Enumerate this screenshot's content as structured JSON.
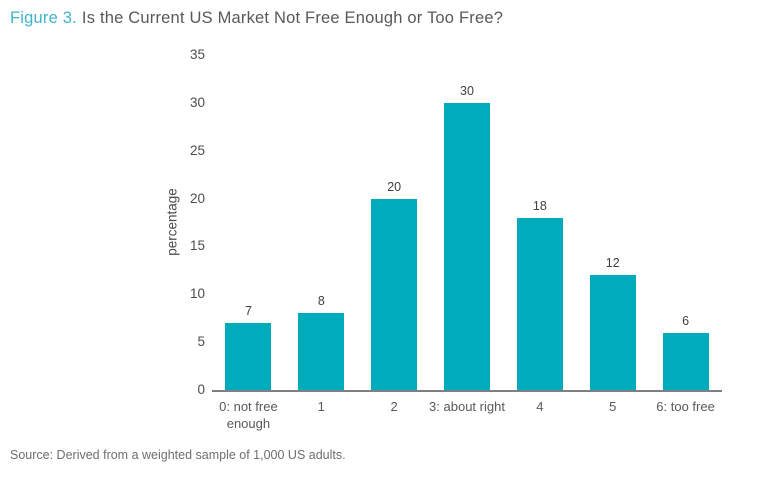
{
  "title": {
    "prefix": "Figure 3.",
    "text": "Is the Current US Market Not Free Enough or Too Free?"
  },
  "source": "Source: Derived from a weighted sample of 1,000 US adults.",
  "colors": {
    "bar": "#00ACBB",
    "title_prefix": "#3FB4C8",
    "title_text": "#58595B",
    "axis_text": "#4D4D4F",
    "value_label": "#414042",
    "source_text": "#6D6E71",
    "baseline": "#7D7F82"
  },
  "chart_data": {
    "type": "bar",
    "title": "Is the Current US Market Not Free Enough or Too Free?",
    "categories": [
      "0: not free enough",
      "1",
      "2",
      "3: about right",
      "4",
      "5",
      "6: too free"
    ],
    "values": [
      7,
      8,
      20,
      30,
      18,
      12,
      6
    ],
    "xlabel": "",
    "ylabel": "percentage",
    "ylim": [
      0,
      35
    ],
    "yticks": [
      0,
      5,
      10,
      15,
      20,
      25,
      30,
      35
    ],
    "grid": false,
    "legend": null,
    "bar_color": "#00ACBB"
  }
}
